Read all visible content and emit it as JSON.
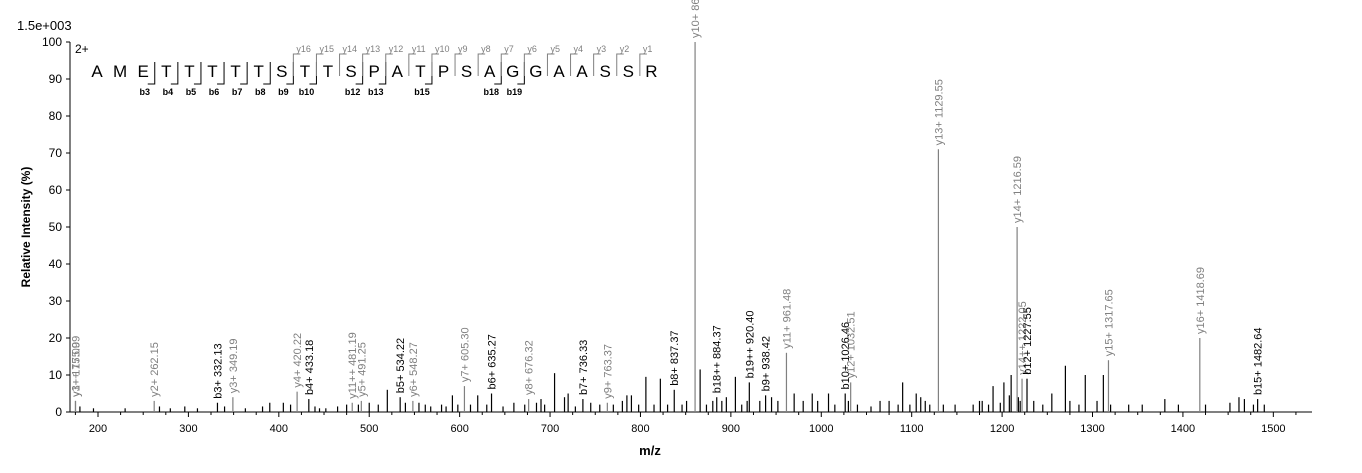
{
  "chart_data": {
    "type": "bar",
    "scale_label": "1.5e+003",
    "charge_label": "2+",
    "xlabel": "m/z",
    "ylabel": "Relative   Intensity (%)",
    "xlim": [
      170,
      1530
    ],
    "ylim": [
      0,
      100
    ],
    "x_ticks": [
      200,
      300,
      400,
      500,
      600,
      700,
      800,
      900,
      1000,
      1100,
      1200,
      1300,
      1400,
      1500
    ],
    "y_ticks": [
      0,
      10,
      20,
      30,
      40,
      50,
      60,
      70,
      80,
      90,
      100
    ],
    "sequence": [
      "A",
      "M",
      "E",
      "T",
      "T",
      "T",
      "T",
      "T",
      "S",
      "T",
      "T",
      "S",
      "P",
      "A",
      "T",
      "P",
      "S",
      "A",
      "G",
      "G",
      "A",
      "A",
      "S",
      "S",
      "R"
    ],
    "b_ions": [
      {
        "pos": 3,
        "label": "b",
        "num": "3"
      },
      {
        "pos": 4,
        "label": "b",
        "num": "4"
      },
      {
        "pos": 5,
        "label": "b",
        "num": "5"
      },
      {
        "pos": 6,
        "label": "b",
        "num": "6"
      },
      {
        "pos": 7,
        "label": "b",
        "num": "7"
      },
      {
        "pos": 8,
        "label": "b",
        "num": "8"
      },
      {
        "pos": 9,
        "label": "b",
        "num": "9"
      },
      {
        "pos": 10,
        "label": "b",
        "num": "10"
      },
      {
        "pos": 12,
        "label": "b",
        "num": "12"
      },
      {
        "pos": 13,
        "label": "b",
        "num": "13"
      },
      {
        "pos": 15,
        "label": "b",
        "num": "15"
      },
      {
        "pos": 18,
        "label": "b",
        "num": "18"
      },
      {
        "pos": 19,
        "label": "b",
        "num": "19"
      }
    ],
    "y_ions": [
      {
        "num": "16",
        "gap": 9
      },
      {
        "num": "15",
        "gap": 10
      },
      {
        "num": "14",
        "gap": 11
      },
      {
        "num": "13",
        "gap": 12
      },
      {
        "num": "12",
        "gap": 13
      },
      {
        "num": "11",
        "gap": 14
      },
      {
        "num": "10",
        "gap": 15
      },
      {
        "num": "9",
        "gap": 16
      },
      {
        "num": "8",
        "gap": 17
      },
      {
        "num": "7",
        "gap": 18
      },
      {
        "num": "6",
        "gap": 19
      },
      {
        "num": "5",
        "gap": 20
      },
      {
        "num": "4",
        "gap": 21
      },
      {
        "num": "3",
        "gap": 22
      },
      {
        "num": "2",
        "gap": 23
      },
      {
        "num": "1",
        "gap": 24
      }
    ],
    "peaks": [
      [
        175.09,
        3,
        "y1+ 175.09",
        "y"
      ],
      [
        175.09,
        3,
        "y3++ 175.09",
        "y"
      ],
      [
        262.15,
        3,
        "y2+ 262.15",
        "y"
      ],
      [
        332.13,
        2.5,
        "b3+ 332.13",
        "b"
      ],
      [
        349.19,
        4,
        "y3+ 349.19",
        "y"
      ],
      [
        420.22,
        5.5,
        "y4+ 420.22",
        "y"
      ],
      [
        433.18,
        3.5,
        "b4+ 433.18",
        "b"
      ],
      [
        481.19,
        2.5,
        "y11++ 481.19",
        "y"
      ],
      [
        491.25,
        3,
        "y5+ 491.25",
        "y"
      ],
      [
        534.22,
        4,
        "b5+ 534.22",
        "b"
      ],
      [
        548.27,
        3,
        "y6+ 548.27",
        "y"
      ],
      [
        605.3,
        7,
        "y7+ 605.30",
        "y"
      ],
      [
        635.27,
        5,
        "b6+ 635.27",
        "b"
      ],
      [
        676.32,
        3.5,
        "y8+ 676.32",
        "y"
      ],
      [
        736.33,
        3.5,
        "b7+ 736.33",
        "b"
      ],
      [
        763.37,
        2.5,
        "y9+ 763.37",
        "y"
      ],
      [
        837.37,
        6,
        "b8+ 837.37",
        "b"
      ],
      [
        860.4,
        100,
        "y10+ 860.4",
        "y"
      ],
      [
        884.37,
        4,
        "b18++ 884.37",
        "b"
      ],
      [
        920.4,
        8,
        "b19++ 920.40",
        "b"
      ],
      [
        938.42,
        4.5,
        "b9+ 938.42",
        "b"
      ],
      [
        961.48,
        16,
        "y11+ 961.48",
        "y"
      ],
      [
        1026.46,
        5,
        "b10+ 1026.46",
        "b"
      ],
      [
        1032.51,
        8,
        "y12+ 1032.51",
        "y"
      ],
      [
        1129.55,
        71,
        "y13+ 1129.55",
        "y"
      ],
      [
        1216.59,
        50,
        "y14+ 1216.59",
        "y"
      ],
      [
        1222.05,
        9,
        "y14++ 1222.05",
        "y"
      ],
      [
        1227.55,
        9,
        "b12+ 1227.55",
        "b"
      ],
      [
        1317.65,
        14,
        "y15+ 1317.65",
        "y"
      ],
      [
        1418.69,
        20,
        "y16+ 1418.69",
        "y"
      ],
      [
        1482.64,
        3.5,
        "b15+ 1482.64",
        "b"
      ]
    ],
    "noise": [
      [
        180,
        1.5
      ],
      [
        195,
        1
      ],
      [
        230,
        1
      ],
      [
        268,
        1.5
      ],
      [
        280,
        1
      ],
      [
        296,
        1.5
      ],
      [
        310,
        1
      ],
      [
        340,
        1.5
      ],
      [
        363,
        1
      ],
      [
        382,
        1.5
      ],
      [
        390,
        2.5
      ],
      [
        405,
        2.5
      ],
      [
        413,
        2
      ],
      [
        440,
        1.5
      ],
      [
        445,
        1
      ],
      [
        452,
        1
      ],
      [
        465,
        1.5
      ],
      [
        475,
        2
      ],
      [
        488,
        2
      ],
      [
        500,
        2.5
      ],
      [
        510,
        2
      ],
      [
        520,
        6
      ],
      [
        540,
        2.5
      ],
      [
        555,
        2.5
      ],
      [
        562,
        2
      ],
      [
        568,
        1.5
      ],
      [
        580,
        2
      ],
      [
        585,
        1.5
      ],
      [
        592,
        4.5
      ],
      [
        598,
        2
      ],
      [
        612,
        2
      ],
      [
        620,
        4.5
      ],
      [
        630,
        2
      ],
      [
        648,
        1.5
      ],
      [
        660,
        2.5
      ],
      [
        672,
        2
      ],
      [
        685,
        2.5
      ],
      [
        690,
        3.5
      ],
      [
        694,
        2
      ],
      [
        705,
        10.5
      ],
      [
        716,
        4
      ],
      [
        720,
        5
      ],
      [
        728,
        1.5
      ],
      [
        745,
        2.5
      ],
      [
        755,
        2
      ],
      [
        770,
        2
      ],
      [
        780,
        3
      ],
      [
        785,
        4.5
      ],
      [
        790,
        4.5
      ],
      [
        798,
        2
      ],
      [
        806,
        9.5
      ],
      [
        815,
        2
      ],
      [
        822,
        9
      ],
      [
        830,
        2
      ],
      [
        846,
        2
      ],
      [
        851,
        3
      ],
      [
        866,
        11.5
      ],
      [
        873,
        2
      ],
      [
        880,
        3
      ],
      [
        890,
        3
      ],
      [
        895,
        4
      ],
      [
        905,
        9.5
      ],
      [
        912,
        2
      ],
      [
        918,
        3
      ],
      [
        932,
        3
      ],
      [
        945,
        4
      ],
      [
        952,
        3
      ],
      [
        970,
        5
      ],
      [
        980,
        3
      ],
      [
        990,
        5
      ],
      [
        996,
        3
      ],
      [
        1008,
        5
      ],
      [
        1015,
        2
      ],
      [
        1030,
        3
      ],
      [
        1040,
        2
      ],
      [
        1055,
        1.5
      ],
      [
        1065,
        3
      ],
      [
        1075,
        3
      ],
      [
        1085,
        2
      ],
      [
        1090,
        8
      ],
      [
        1098,
        2
      ],
      [
        1105,
        5
      ],
      [
        1110,
        4
      ],
      [
        1115,
        3
      ],
      [
        1120,
        2
      ],
      [
        1135,
        2
      ],
      [
        1148,
        2
      ],
      [
        1168,
        2
      ],
      [
        1175,
        3
      ],
      [
        1178,
        3
      ],
      [
        1185,
        2
      ],
      [
        1190,
        7
      ],
      [
        1198,
        2.5
      ],
      [
        1202,
        8
      ],
      [
        1208,
        4.5
      ],
      [
        1210,
        10
      ],
      [
        1218,
        4
      ],
      [
        1220,
        3
      ],
      [
        1235,
        3
      ],
      [
        1245,
        2
      ],
      [
        1255,
        5
      ],
      [
        1270,
        12.5
      ],
      [
        1275,
        3
      ],
      [
        1285,
        2
      ],
      [
        1292,
        10
      ],
      [
        1305,
        3
      ],
      [
        1312,
        10
      ],
      [
        1320,
        2
      ],
      [
        1340,
        2
      ],
      [
        1355,
        2
      ],
      [
        1380,
        3.5
      ],
      [
        1395,
        2
      ],
      [
        1425,
        2
      ],
      [
        1452,
        2.5
      ],
      [
        1462,
        4
      ],
      [
        1468,
        3.5
      ],
      [
        1478,
        2
      ],
      [
        1490,
        2
      ]
    ]
  }
}
